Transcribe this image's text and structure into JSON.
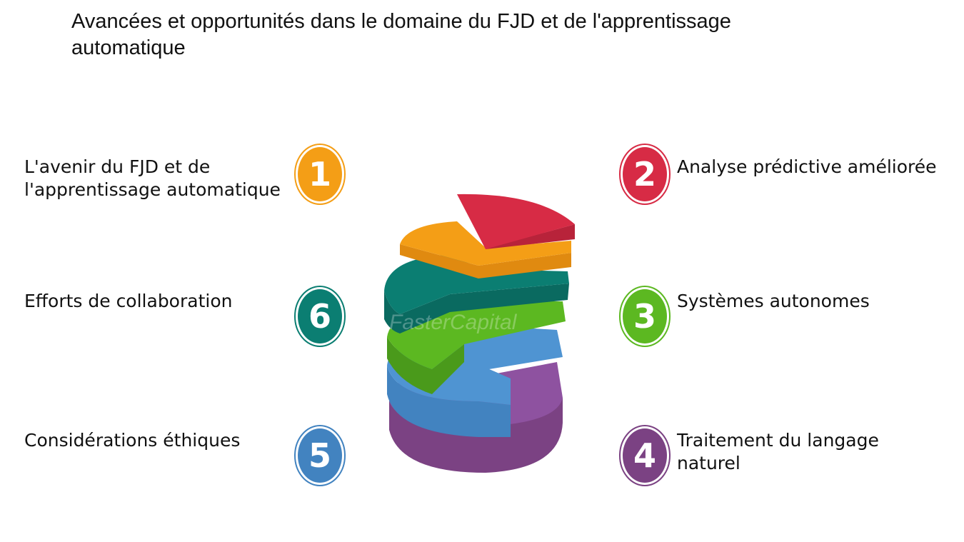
{
  "title": "Avancées et opportunités dans le domaine du FJD et de l'apprentissage automatique",
  "items": [
    {
      "number": "1",
      "label": "L'avenir du FJD et de l'apprentissage automatique",
      "color": "#F49E16"
    },
    {
      "number": "2",
      "label": "Analyse prédictive améliorée",
      "color": "#D72B45"
    },
    {
      "number": "3",
      "label": "Systèmes autonomes",
      "color": "#5CB821"
    },
    {
      "number": "4",
      "label": "Traitement du langage naturel",
      "color": "#7B4283"
    },
    {
      "number": "5",
      "label": "Considérations éthiques",
      "color": "#4283C0"
    },
    {
      "number": "6",
      "label": "Efforts de collaboration",
      "color": "#0B7E72"
    }
  ],
  "watermark": "FasterCapital",
  "icons": {
    "center": "stacked-pie-cylinder-icon"
  }
}
